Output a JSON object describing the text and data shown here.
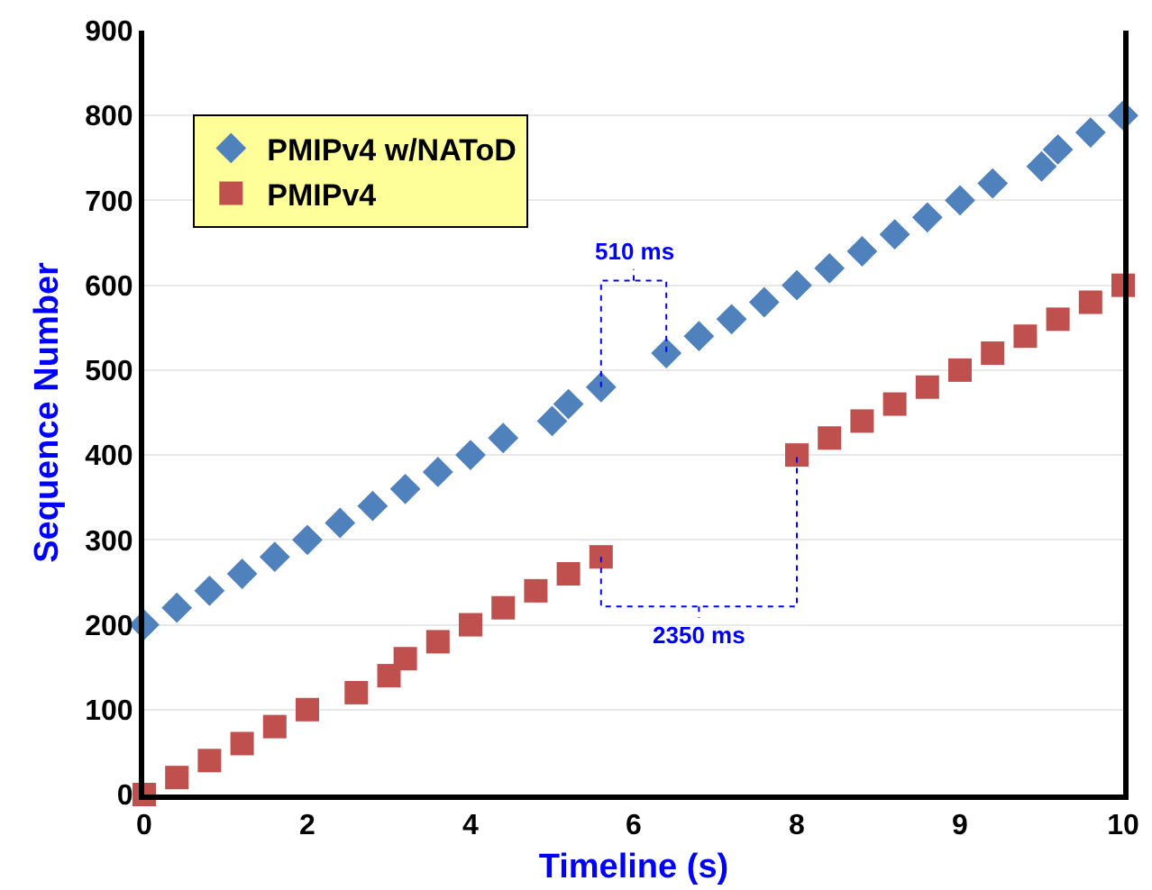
{
  "chart_data": {
    "type": "scatter",
    "xlabel": "Timeline (s)",
    "ylabel": "Sequence Number",
    "categories": [
      "0",
      null,
      null,
      null,
      null,
      null,
      null,
      null,
      null,
      null,
      "2",
      null,
      null,
      null,
      null,
      null,
      null,
      null,
      null,
      null,
      "4",
      null,
      null,
      null,
      null,
      null,
      null,
      null,
      null,
      null,
      "6",
      null,
      null,
      null,
      null,
      null,
      null,
      null,
      null,
      null,
      "8",
      null,
      null,
      null,
      null,
      null,
      null,
      null,
      null,
      null,
      "9",
      null,
      null,
      null,
      null,
      null,
      null,
      null,
      null,
      null,
      "10"
    ],
    "ylim": [
      0,
      900
    ],
    "yticks": [
      0,
      100,
      200,
      300,
      400,
      500,
      600,
      700,
      800,
      900
    ],
    "grid": "y",
    "legend": "top left",
    "series": [
      {
        "name": "PMIPv4 w/NAToD",
        "color": "#4f81bd",
        "marker": "diamond",
        "values": [
          200,
          null,
          220,
          null,
          240,
          null,
          260,
          null,
          280,
          null,
          300,
          null,
          320,
          null,
          340,
          null,
          360,
          null,
          380,
          null,
          400,
          null,
          420,
          null,
          null,
          440,
          460,
          null,
          480,
          null,
          null,
          null,
          520,
          null,
          540,
          null,
          560,
          null,
          580,
          null,
          600,
          null,
          620,
          null,
          640,
          null,
          660,
          null,
          680,
          null,
          700,
          null,
          720,
          null,
          null,
          740,
          760,
          null,
          780,
          null,
          800
        ]
      },
      {
        "name": "PMIPv4",
        "color": "#c0504d",
        "marker": "square",
        "values": [
          0,
          null,
          20,
          null,
          40,
          null,
          60,
          null,
          80,
          null,
          100,
          null,
          null,
          120,
          null,
          140,
          160,
          null,
          180,
          null,
          200,
          null,
          220,
          null,
          240,
          null,
          260,
          null,
          280,
          null,
          null,
          null,
          null,
          null,
          null,
          null,
          null,
          null,
          null,
          null,
          400,
          null,
          420,
          null,
          440,
          null,
          460,
          null,
          480,
          null,
          500,
          null,
          520,
          null,
          540,
          null,
          560,
          null,
          580,
          null,
          600
        ]
      }
    ],
    "annotations": [
      "510 ms",
      "2350 ms"
    ]
  }
}
